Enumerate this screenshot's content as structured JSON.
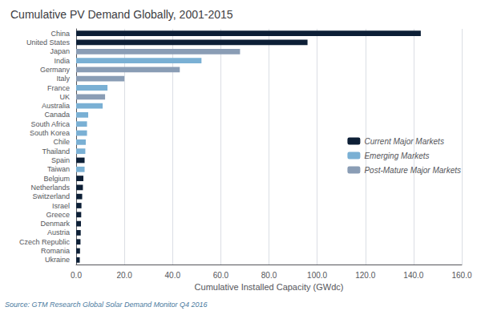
{
  "chart_data": {
    "type": "bar",
    "orientation": "horizontal",
    "title": "Cumulative PV Demand Globally, 2001-2015",
    "xlabel": "Cumulative Installed Capacity (GWdc)",
    "annotations": [
      "Source: GTM Research Global Solar Demand Monitor Q4 2016"
    ],
    "categories": [
      "China",
      "United States",
      "Japan",
      "India",
      "Germany",
      "Italy",
      "France",
      "UK",
      "Australia",
      "Canada",
      "South Africa",
      "South Korea",
      "Chile",
      "Thailand",
      "Spain",
      "Taiwan",
      "Belgium",
      "Netherlands",
      "Switzerland",
      "Israel",
      "Greece",
      "Denmark",
      "Austria",
      "Czech Republic",
      "Romania",
      "Ukraine"
    ],
    "series": [
      {
        "name": "Current Major Markets",
        "color": "#0d1f36",
        "values": [
          143,
          96,
          null,
          null,
          null,
          null,
          null,
          null,
          null,
          null,
          null,
          null,
          null,
          null,
          3.5,
          null,
          3.0,
          2.8,
          2.5,
          2.2,
          2.1,
          2.0,
          1.9,
          1.8,
          1.6,
          1.5
        ]
      },
      {
        "name": "Emerging Markets",
        "color": "#7ab0d4",
        "values": [
          null,
          null,
          null,
          52,
          null,
          null,
          13,
          null,
          11,
          5,
          4.5,
          4.5,
          4.0,
          3.8,
          null,
          3.5,
          null,
          null,
          null,
          null,
          null,
          null,
          null,
          null,
          null,
          null
        ]
      },
      {
        "name": "Post-Mature Major Markets",
        "color": "#8a9db5",
        "values": [
          null,
          null,
          68,
          null,
          43,
          20,
          null,
          12,
          null,
          null,
          null,
          null,
          null,
          null,
          null,
          null,
          null,
          null,
          null,
          null,
          null,
          null,
          null,
          null,
          null,
          null
        ]
      }
    ],
    "xlim": [
      0,
      160
    ],
    "xticks": [
      {
        "value": 0,
        "label": "0.0"
      },
      {
        "value": 20,
        "label": "20.0"
      },
      {
        "value": 40,
        "label": "40.0"
      },
      {
        "value": 60,
        "label": "60.0"
      },
      {
        "value": 80,
        "label": "80.0"
      },
      {
        "value": 100,
        "label": "100.0"
      },
      {
        "value": 120,
        "label": "120.0"
      },
      {
        "value": 140,
        "label": "140.0"
      },
      {
        "value": 160,
        "label": "160.0"
      }
    ],
    "grid": true,
    "legend": "right"
  }
}
